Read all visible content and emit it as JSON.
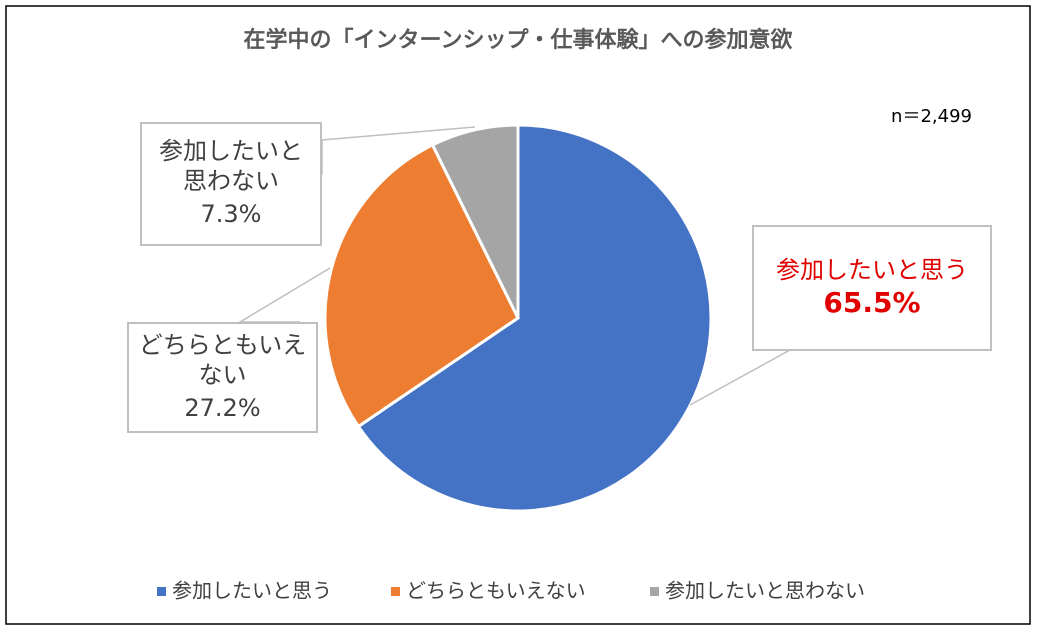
{
  "chart_data": {
    "type": "pie",
    "title": "在学中の「インターンシップ・仕事体験」への参加意欲",
    "annotation": "n＝2,499",
    "categories": [
      "参加したいと思う",
      "どちらともいえない",
      "参加したいと思わない"
    ],
    "values": [
      65.5,
      27.2,
      7.3
    ],
    "value_labels": [
      "65.5%",
      "27.2%",
      "7.3%"
    ],
    "colors": [
      "#4472c4",
      "#ed7d31",
      "#a5a5a5"
    ],
    "legend": "bottom"
  }
}
